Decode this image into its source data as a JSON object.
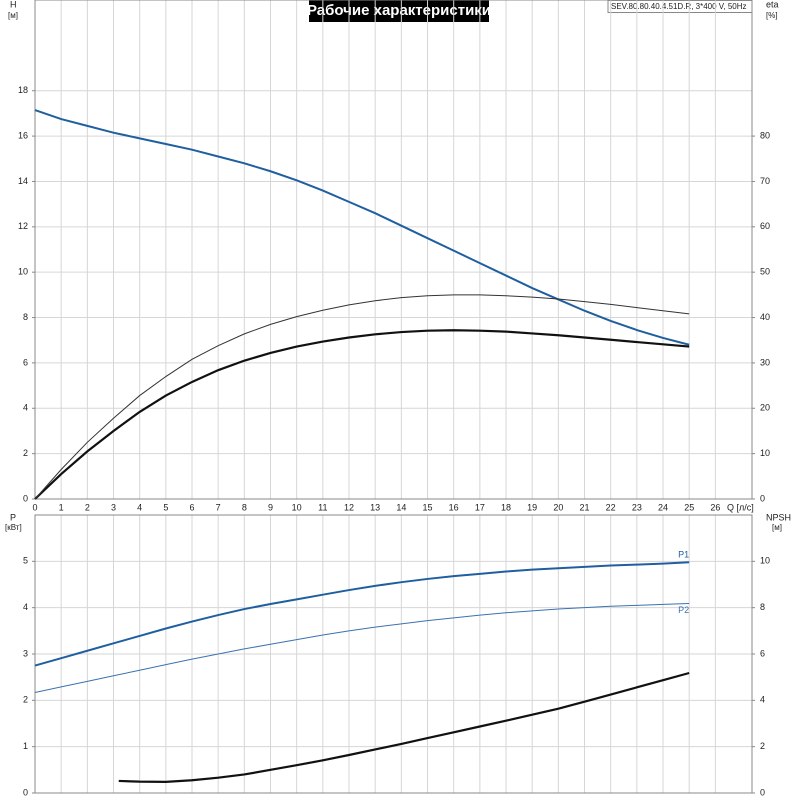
{
  "chart_data": [
    {
      "type": "line",
      "title": "Рабочие характеристики",
      "subtitle": "SEV.80.80.40.4.51D.R, 3*400 V, 50Hz",
      "xlabel": "Q [л/с]",
      "ylabel": "H",
      "ylabel_unit": "[м]",
      "y2label": "eta",
      "y2label_unit": "[%]",
      "x": [
        0,
        1,
        2,
        3,
        4,
        5,
        6,
        7,
        8,
        9,
        10,
        11,
        12,
        13,
        14,
        15,
        16,
        17,
        18,
        19,
        20,
        21,
        22,
        23,
        24,
        25
      ],
      "xlim": [
        0,
        27.4
      ],
      "xticks": [
        0,
        1,
        2,
        3,
        4,
        5,
        6,
        7,
        8,
        9,
        10,
        11,
        12,
        13,
        14,
        15,
        16,
        17,
        18,
        19,
        20,
        21,
        22,
        23,
        24,
        25,
        26
      ],
      "ylim": [
        0,
        22
      ],
      "yticks": [
        0,
        2,
        4,
        6,
        8,
        10,
        12,
        14,
        16,
        18
      ],
      "y2lim": [
        0,
        110
      ],
      "y2ticks": [
        0,
        10,
        20,
        30,
        40,
        50,
        60,
        70,
        80
      ],
      "grid": true,
      "series": [
        {
          "color": "#1f5fa0",
          "linewidth": 2,
          "axis": "y",
          "values": [
            17.15,
            16.75,
            16.45,
            16.15,
            15.9,
            15.65,
            15.4,
            15.1,
            14.8,
            14.45,
            14.05,
            13.6,
            13.1,
            12.6,
            12.05,
            11.5,
            10.95,
            10.4,
            9.85,
            9.3,
            8.8,
            8.3,
            7.85,
            7.45,
            7.1,
            6.8
          ]
        },
        {
          "color": "#111111",
          "linewidth": 2.2,
          "axis": "y2",
          "values": [
            0,
            5.5,
            10.5,
            15,
            19.2,
            22.8,
            25.8,
            28.4,
            30.5,
            32.2,
            33.6,
            34.7,
            35.6,
            36.3,
            36.8,
            37.1,
            37.2,
            37.1,
            36.9,
            36.5,
            36.1,
            35.6,
            35.1,
            34.6,
            34.1,
            33.6
          ]
        },
        {
          "color": "#333333",
          "linewidth": 1,
          "axis": "y2",
          "values": [
            0,
            6.5,
            12.5,
            17.8,
            22.8,
            27,
            30.8,
            33.8,
            36.4,
            38.5,
            40.2,
            41.6,
            42.8,
            43.7,
            44.4,
            44.8,
            45,
            45,
            44.8,
            44.5,
            44.1,
            43.5,
            42.9,
            42.2,
            41.5,
            40.8
          ]
        }
      ]
    },
    {
      "type": "line",
      "ylabel": "P",
      "ylabel_unit": "[кВт]",
      "y2label": "NPSH",
      "y2label_unit": "[м]",
      "x": [
        0,
        1,
        2,
        3,
        4,
        5,
        6,
        7,
        8,
        9,
        10,
        11,
        12,
        13,
        14,
        15,
        16,
        17,
        18,
        19,
        20,
        21,
        22,
        23,
        24,
        25
      ],
      "xlim": [
        0,
        27.4
      ],
      "ylim": [
        0,
        6
      ],
      "yticks": [
        0,
        1,
        2,
        3,
        4,
        5
      ],
      "y2lim": [
        0,
        12
      ],
      "y2ticks": [
        0,
        2,
        4,
        6,
        8,
        10
      ],
      "grid": true,
      "series": [
        {
          "name": "P1",
          "color": "#1f5fa0",
          "linewidth": 2,
          "axis": "y",
          "values": [
            2.75,
            2.91,
            3.07,
            3.23,
            3.39,
            3.55,
            3.7,
            3.84,
            3.97,
            4.08,
            4.18,
            4.28,
            4.38,
            4.47,
            4.55,
            4.62,
            4.68,
            4.73,
            4.78,
            4.82,
            4.85,
            4.88,
            4.91,
            4.93,
            4.95,
            4.98
          ]
        },
        {
          "name": "P2",
          "color": "#3a72b0",
          "linewidth": 1,
          "axis": "y",
          "values": [
            2.17,
            2.29,
            2.41,
            2.53,
            2.65,
            2.77,
            2.89,
            3.0,
            3.11,
            3.21,
            3.31,
            3.41,
            3.5,
            3.58,
            3.65,
            3.72,
            3.78,
            3.84,
            3.89,
            3.93,
            3.97,
            4.0,
            4.03,
            4.05,
            4.07,
            4.09
          ]
        },
        {
          "color": "#111111",
          "linewidth": 2.2,
          "axis": "y2",
          "x": [
            3.2,
            4,
            5,
            6,
            7,
            8,
            9,
            10,
            11,
            12,
            13,
            14,
            15,
            16,
            17,
            18,
            19,
            20,
            21,
            22,
            23,
            24,
            25
          ],
          "values": [
            0.52,
            0.49,
            0.48,
            0.55,
            0.66,
            0.8,
            1.0,
            1.2,
            1.41,
            1.64,
            1.88,
            2.12,
            2.37,
            2.62,
            2.87,
            3.12,
            3.38,
            3.64,
            3.94,
            4.25,
            4.56,
            4.87,
            5.18
          ]
        }
      ]
    }
  ]
}
